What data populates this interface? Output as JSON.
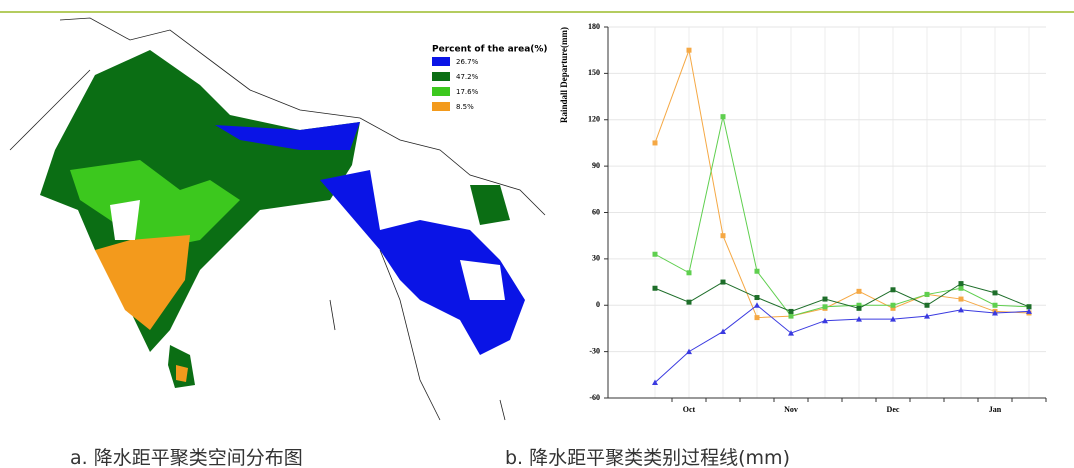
{
  "captions": {
    "a": "a. 降水距平聚类空间分布图",
    "b": "b. 降水距平聚类类别过程线(mm)"
  },
  "map_legend": {
    "title": "Percent of the area(%)",
    "entries": [
      {
        "label": "26.7%",
        "color": "#0a14e6"
      },
      {
        "label": "47.2%",
        "color": "#0b6e14"
      },
      {
        "label": "17.6%",
        "color": "#3cc81e"
      },
      {
        "label": "8.5%",
        "color": "#f39a1c"
      }
    ]
  },
  "chart_data": {
    "type": "line",
    "y_label": "Raindall Departure(mm)",
    "categories": [
      null,
      "Oct",
      null,
      null,
      "Nov",
      null,
      null,
      "Dec",
      null,
      null,
      "Jan",
      null
    ],
    "ylim": [
      -60,
      180
    ],
    "yticks": [
      -60,
      -30,
      0,
      30,
      60,
      90,
      120,
      150,
      180
    ],
    "grid": true,
    "series": [
      {
        "color": "#f5a844",
        "marker": "square",
        "values": [
          105,
          165,
          45,
          -8,
          -7,
          -2,
          9,
          -2,
          7,
          4,
          -4,
          -5
        ]
      },
      {
        "color": "#5fcf4f",
        "marker": "square",
        "values": [
          33,
          21,
          122,
          22,
          -7,
          -1,
          0,
          0,
          7,
          11,
          0,
          -1
        ]
      },
      {
        "color": "#1e6e2a",
        "marker": "square",
        "values": [
          11,
          2,
          15,
          5,
          -4,
          4,
          -2,
          10,
          0,
          14,
          8,
          -1
        ]
      },
      {
        "color": "#3a3ae0",
        "marker": "triangle",
        "values": [
          -50,
          -30,
          -17,
          0,
          -18,
          -10,
          -9,
          -9,
          -7,
          -3,
          -5,
          -4
        ]
      }
    ]
  }
}
